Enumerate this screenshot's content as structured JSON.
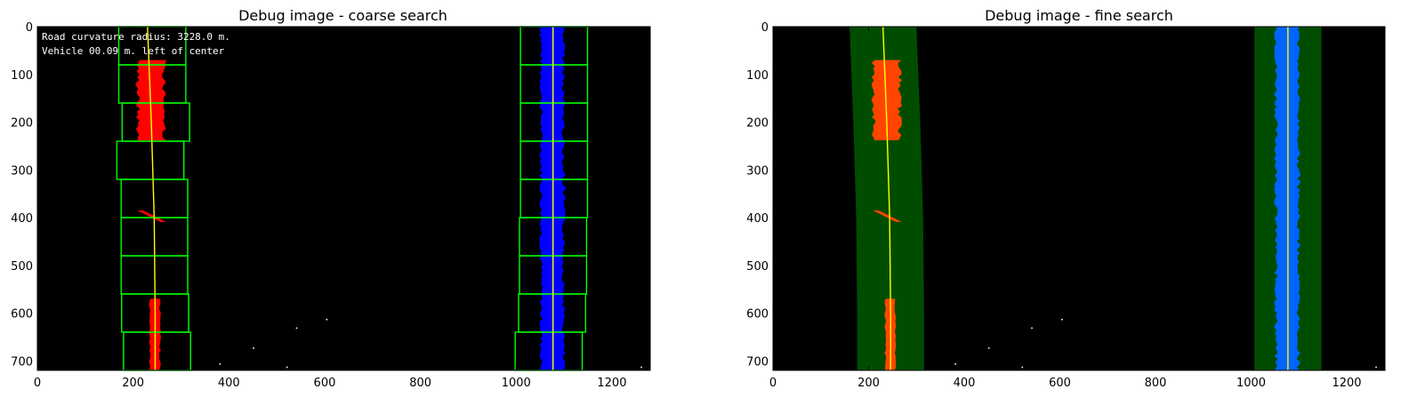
{
  "figure": {
    "panels": [
      {
        "title": "Debug image - coarse search",
        "overlay_lines": [
          "Road curvature radius: 3228.0 m.",
          "Vehicle 00.09 m. left of center"
        ]
      },
      {
        "title": "Debug image - fine search",
        "overlay_lines": []
      }
    ]
  },
  "chart_data": [
    {
      "type": "image",
      "title": "Debug image - coarse search",
      "xlim": [
        0,
        1280
      ],
      "ylim": [
        720,
        0
      ],
      "xticks": [
        0,
        200,
        400,
        600,
        800,
        1000,
        1200
      ],
      "yticks": [
        0,
        100,
        200,
        300,
        400,
        500,
        600,
        700
      ],
      "annotations": [
        "Road curvature radius: 3228.0 m.",
        "Vehicle 00.09 m. left of center"
      ],
      "colors": {
        "background": "#000000",
        "left_pixels": "#ff0000",
        "right_pixels": "#0000ff",
        "fit_line": "#ffff00",
        "windows": "#00ff00"
      },
      "left_fit": [
        [
          230,
          0
        ],
        [
          238,
          200
        ],
        [
          244,
          400
        ],
        [
          246,
          600
        ],
        [
          246,
          720
        ]
      ],
      "right_fit": [
        [
          1077,
          0
        ],
        [
          1077,
          360
        ],
        [
          1077,
          720
        ]
      ],
      "left_pixel_blobs": [
        {
          "y_range": [
            70,
            240
          ],
          "x_range": [
            205,
            270
          ]
        },
        {
          "y_range": [
            385,
            410
          ],
          "x_range": [
            215,
            265
          ]
        },
        {
          "y_range": [
            570,
            720
          ],
          "x_range": [
            233,
            258
          ]
        }
      ],
      "right_pixel_band": {
        "y_range": [
          0,
          720
        ],
        "x_range": [
          1048,
          1103
        ]
      },
      "left_windows": [
        {
          "x": [
            170,
            310
          ],
          "y": [
            0,
            80
          ]
        },
        {
          "x": [
            170,
            310
          ],
          "y": [
            80,
            160
          ]
        },
        {
          "x": [
            177,
            318
          ],
          "y": [
            160,
            240
          ]
        },
        {
          "x": [
            166,
            306
          ],
          "y": [
            240,
            320
          ]
        },
        {
          "x": [
            175,
            314
          ],
          "y": [
            320,
            400
          ]
        },
        {
          "x": [
            175,
            314
          ],
          "y": [
            400,
            480
          ]
        },
        {
          "x": [
            175,
            314
          ],
          "y": [
            480,
            560
          ]
        },
        {
          "x": [
            176,
            316
          ],
          "y": [
            560,
            640
          ]
        },
        {
          "x": [
            180,
            320
          ],
          "y": [
            640,
            720
          ]
        }
      ],
      "right_windows": [
        {
          "x": [
            1009,
            1149
          ],
          "y": [
            0,
            80
          ]
        },
        {
          "x": [
            1009,
            1149
          ],
          "y": [
            80,
            160
          ]
        },
        {
          "x": [
            1009,
            1149
          ],
          "y": [
            160,
            240
          ]
        },
        {
          "x": [
            1009,
            1149
          ],
          "y": [
            240,
            320
          ]
        },
        {
          "x": [
            1009,
            1149
          ],
          "y": [
            320,
            400
          ]
        },
        {
          "x": [
            1007,
            1147
          ],
          "y": [
            400,
            480
          ]
        },
        {
          "x": [
            1007,
            1147
          ],
          "y": [
            480,
            560
          ]
        },
        {
          "x": [
            1005,
            1145
          ],
          "y": [
            560,
            640
          ]
        },
        {
          "x": [
            998,
            1138
          ],
          "y": [
            640,
            720
          ]
        }
      ],
      "noise_points": [
        [
          603,
          612
        ],
        [
          540,
          630
        ],
        [
          450,
          672
        ],
        [
          380,
          705
        ],
        [
          520,
          712
        ],
        [
          1260,
          712
        ]
      ]
    },
    {
      "type": "image",
      "title": "Debug image - fine search",
      "xlim": [
        0,
        1280
      ],
      "ylim": [
        720,
        0
      ],
      "xticks": [
        0,
        200,
        400,
        600,
        800,
        1000,
        1200
      ],
      "yticks": [
        0,
        100,
        200,
        300,
        400,
        500,
        600,
        700
      ],
      "colors": {
        "background": "#000000",
        "left_pixels": "#ff4500",
        "right_pixels": "#0064ff",
        "fit_line": "#ffff00",
        "search_band": "#004d00"
      },
      "left_fit": [
        [
          230,
          0
        ],
        [
          238,
          200
        ],
        [
          244,
          400
        ],
        [
          246,
          600
        ],
        [
          246,
          720
        ]
      ],
      "right_fit": [
        [
          1077,
          0
        ],
        [
          1077,
          360
        ],
        [
          1077,
          720
        ]
      ],
      "search_margin": 70,
      "left_pixel_blobs": [
        {
          "y_range": [
            70,
            240
          ],
          "x_range": [
            205,
            270
          ]
        },
        {
          "y_range": [
            385,
            410
          ],
          "x_range": [
            215,
            265
          ]
        },
        {
          "y_range": [
            570,
            720
          ],
          "x_range": [
            233,
            258
          ]
        }
      ],
      "right_pixel_band": {
        "y_range": [
          0,
          720
        ],
        "x_range": [
          1048,
          1103
        ]
      },
      "noise_points": [
        [
          603,
          612
        ],
        [
          540,
          630
        ],
        [
          450,
          672
        ],
        [
          380,
          705
        ],
        [
          520,
          712
        ],
        [
          1260,
          712
        ]
      ]
    }
  ]
}
